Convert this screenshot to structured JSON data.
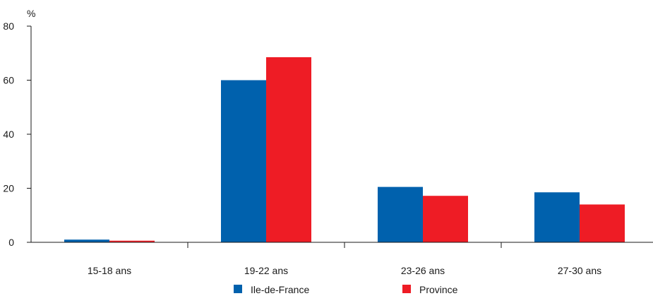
{
  "chart_data": {
    "type": "bar",
    "title": "",
    "xlabel": "",
    "ylabel": "%",
    "ylim": [
      0,
      80
    ],
    "yticks": [
      0,
      20,
      40,
      60,
      80
    ],
    "grid": false,
    "legend_position": "bottom",
    "categories": [
      "15-18 ans",
      "19-22 ans",
      "23-26 ans",
      "27-30 ans"
    ],
    "series": [
      {
        "name": "Ile-de-France",
        "color": "#0061ad",
        "values": [
          1.0,
          60.0,
          20.5,
          18.5
        ]
      },
      {
        "name": "Province",
        "color": "#ee1c25",
        "values": [
          0.6,
          68.5,
          17.2,
          14.0
        ]
      }
    ]
  }
}
